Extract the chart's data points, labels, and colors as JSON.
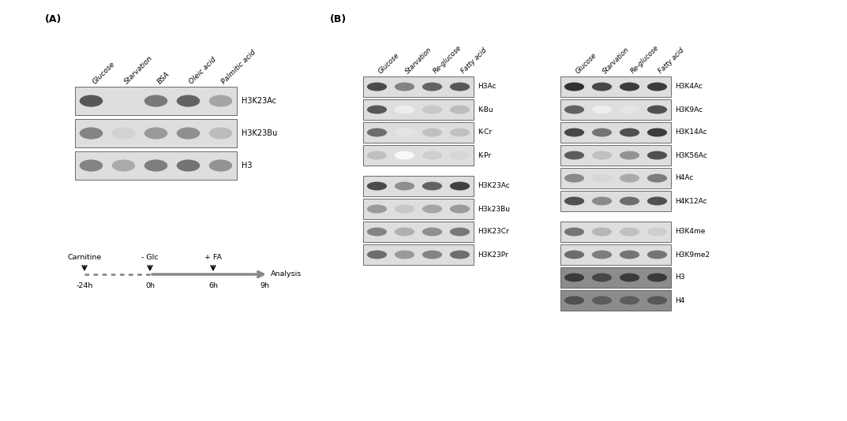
{
  "bg_color": "#ffffff",
  "panel_A_label": "(A)",
  "panel_B_label": "(B)",
  "panel_A_col_labels": [
    "Glucose",
    "Starvation",
    "BSA",
    "Oleic acid",
    "Palmitic acid"
  ],
  "panel_A_rows": [
    {
      "label": "H3K23Ac",
      "bands": [
        0.75,
        0.0,
        0.6,
        0.7,
        0.4
      ]
    },
    {
      "label": "H3K23Bu",
      "bands": [
        0.55,
        0.2,
        0.45,
        0.5,
        0.3
      ]
    },
    {
      "label": "H3",
      "bands": [
        0.55,
        0.38,
        0.58,
        0.62,
        0.48
      ]
    }
  ],
  "panel_B_col_labels": [
    "Glucose",
    "Starvation",
    "Re-glucose",
    "Fatty acid"
  ],
  "panel_B1_rows": [
    {
      "label": "H3Ac",
      "bands": [
        0.8,
        0.55,
        0.7,
        0.75
      ]
    },
    {
      "label": "K-Bu",
      "bands": [
        0.75,
        0.08,
        0.25,
        0.3
      ]
    },
    {
      "label": "K-Cr",
      "bands": [
        0.65,
        0.12,
        0.28,
        0.28
      ]
    },
    {
      "label": "K-Pr",
      "bands": [
        0.28,
        0.03,
        0.22,
        0.18
      ]
    }
  ],
  "panel_B2_rows": [
    {
      "label": "H3K23Ac",
      "bands": [
        0.8,
        0.5,
        0.7,
        0.85
      ]
    },
    {
      "label": "H3k23Bu",
      "bands": [
        0.45,
        0.25,
        0.4,
        0.45
      ]
    },
    {
      "label": "H3K23Cr",
      "bands": [
        0.55,
        0.35,
        0.5,
        0.6
      ]
    },
    {
      "label": "H3K23Pr",
      "bands": [
        0.65,
        0.45,
        0.55,
        0.65
      ]
    }
  ],
  "panel_B3_rows": [
    {
      "label": "H3K4Ac",
      "bands": [
        0.92,
        0.82,
        0.87,
        0.87
      ]
    },
    {
      "label": "H3K9Ac",
      "bands": [
        0.7,
        0.08,
        0.12,
        0.78
      ]
    },
    {
      "label": "H3K14Ac",
      "bands": [
        0.82,
        0.62,
        0.78,
        0.87
      ]
    },
    {
      "label": "H3K56Ac",
      "bands": [
        0.72,
        0.28,
        0.48,
        0.78
      ]
    },
    {
      "label": "H4Ac",
      "bands": [
        0.52,
        0.18,
        0.38,
        0.58
      ]
    },
    {
      "label": "H4K12Ac",
      "bands": [
        0.78,
        0.52,
        0.65,
        0.78
      ]
    }
  ],
  "panel_B4_rows": [
    {
      "label": "H3K4me",
      "bands": [
        0.62,
        0.32,
        0.28,
        0.22
      ]
    },
    {
      "label": "H3K9me2",
      "bands": [
        0.65,
        0.58,
        0.62,
        0.62
      ]
    },
    {
      "label": "H3",
      "bands": [
        0.88,
        0.82,
        0.88,
        0.88
      ]
    },
    {
      "label": "H4",
      "bands": [
        0.78,
        0.72,
        0.72,
        0.75
      ]
    }
  ]
}
